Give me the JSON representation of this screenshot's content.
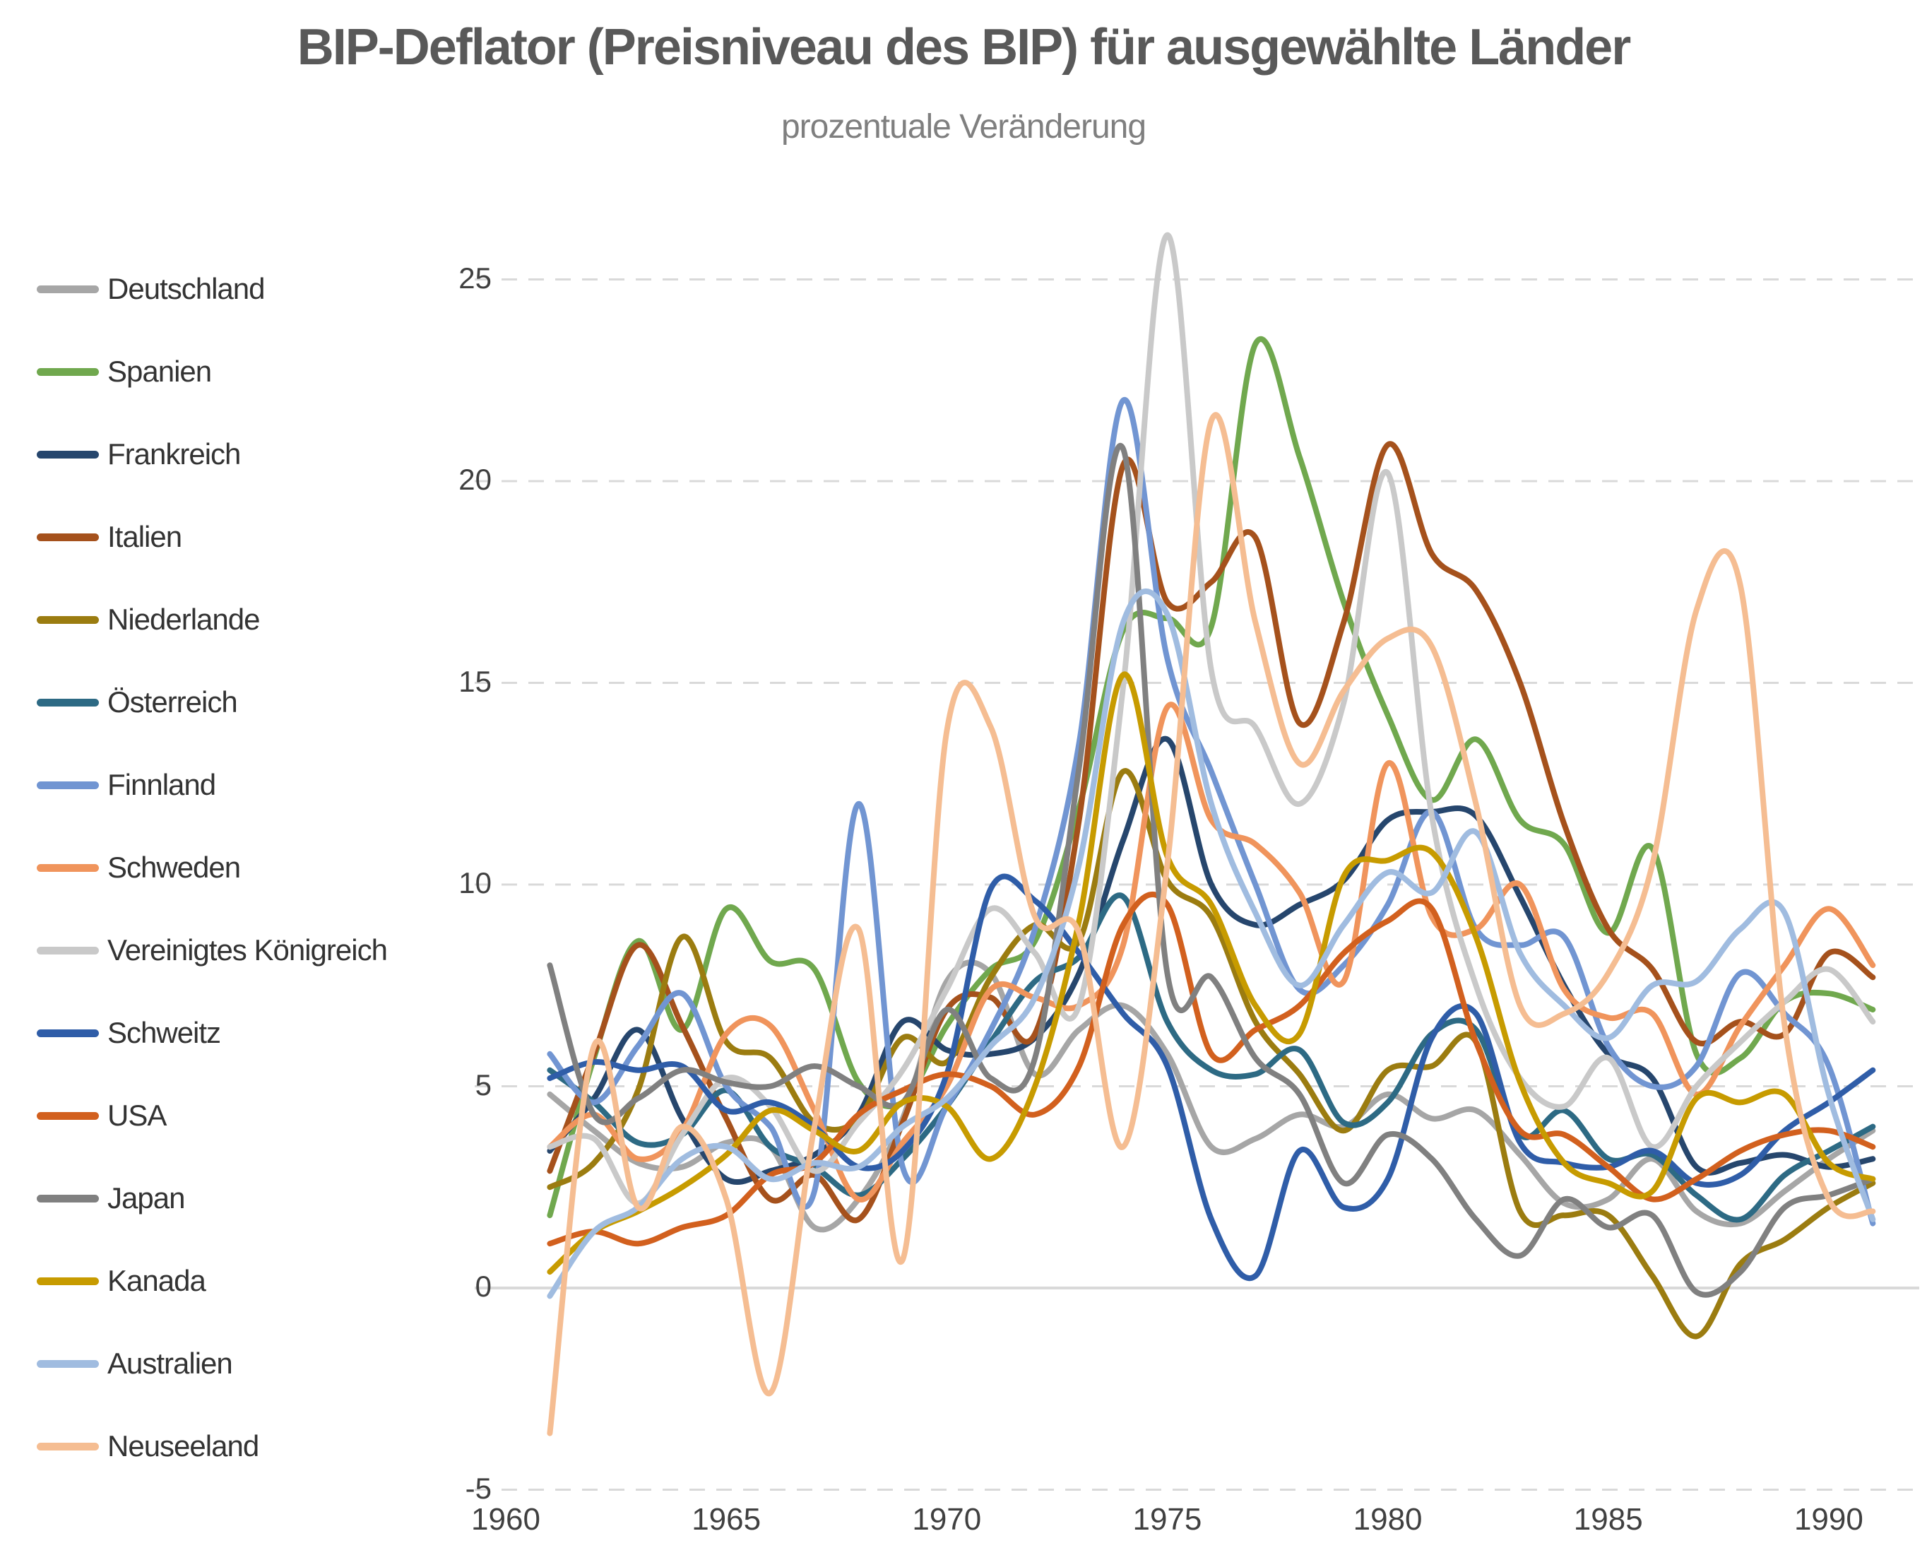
{
  "title": "BIP-Deflator (Preisniveau des BIP) für ausgewählte Länder",
  "subtitle": "prozentuale Veränderung",
  "chart_data": {
    "type": "line",
    "x_label": "",
    "y_label": "",
    "x": [
      1961,
      1962,
      1963,
      1964,
      1965,
      1966,
      1967,
      1968,
      1969,
      1970,
      1971,
      1972,
      1973,
      1974,
      1975,
      1976,
      1977,
      1978,
      1979,
      1980,
      1981,
      1982,
      1983,
      1984,
      1985,
      1986,
      1987,
      1988,
      1989,
      1990,
      1991
    ],
    "x_ticks": [
      1960,
      1965,
      1970,
      1975,
      1980,
      1985,
      1990
    ],
    "y_ticks": [
      25,
      20,
      15,
      10,
      5,
      0,
      -5
    ],
    "y_range": [
      -5,
      25
    ],
    "grid": "horizontal, dashed, zero line solid",
    "legend_position": "left",
    "grid_color": "#d9d9d9",
    "series": [
      {
        "name": "Deutschland",
        "color": "#a6a6a6",
        "values": [
          4.8,
          3.9,
          3.1,
          3.0,
          3.6,
          3.5,
          1.5,
          2.2,
          4.2,
          7.6,
          7.8,
          5.3,
          6.4,
          7.0,
          5.8,
          3.5,
          3.7,
          4.3,
          4.0,
          4.8,
          4.2,
          4.4,
          3.3,
          2.1,
          2.2,
          3.2,
          1.9,
          1.6,
          2.4,
          3.2,
          3.9
        ]
      },
      {
        "name": "Spanien",
        "color": "#70a84e",
        "values": [
          1.8,
          5.7,
          8.6,
          6.4,
          9.4,
          8.1,
          7.9,
          5.1,
          4.6,
          6.5,
          7.9,
          8.6,
          11.9,
          16.3,
          16.6,
          16.4,
          23.4,
          20.6,
          17.0,
          14.2,
          12.1,
          13.6,
          11.6,
          11.0,
          8.8,
          10.9,
          5.8,
          5.7,
          7.1,
          7.3,
          6.9
        ]
      },
      {
        "name": "Frankreich",
        "color": "#26466d",
        "values": [
          3.4,
          4.7,
          6.4,
          4.2,
          2.7,
          2.9,
          3.3,
          4.3,
          6.6,
          5.9,
          5.8,
          6.2,
          7.8,
          11.1,
          13.6,
          10.0,
          9.0,
          9.5,
          10.1,
          11.6,
          11.8,
          11.7,
          9.7,
          7.5,
          5.8,
          5.2,
          3.0,
          3.1,
          3.3,
          3.0,
          3.2
        ]
      },
      {
        "name": "Italien",
        "color": "#a5511c",
        "values": [
          2.9,
          5.8,
          8.5,
          6.5,
          4.2,
          2.2,
          2.8,
          1.7,
          4.1,
          6.9,
          7.2,
          6.3,
          11.6,
          20.4,
          17.0,
          17.5,
          18.6,
          14.0,
          16.5,
          20.9,
          18.2,
          17.3,
          15.0,
          11.5,
          8.9,
          7.9,
          6.1,
          6.6,
          6.3,
          8.3,
          7.7
        ]
      },
      {
        "name": "Niederlande",
        "color": "#9b7c10",
        "values": [
          2.5,
          3.1,
          4.9,
          8.7,
          6.1,
          5.7,
          4.1,
          4.2,
          6.2,
          5.6,
          7.7,
          9.0,
          8.6,
          12.8,
          10.1,
          9.2,
          6.6,
          5.3,
          3.9,
          5.4,
          5.5,
          6.1,
          1.9,
          1.8,
          1.8,
          0.3,
          -1.2,
          0.6,
          1.2,
          2.0,
          2.6
        ]
      },
      {
        "name": "Österreich",
        "color": "#2d6a84",
        "values": [
          5.4,
          4.6,
          3.6,
          3.8,
          4.9,
          3.5,
          3.0,
          2.3,
          3.2,
          4.5,
          6.1,
          7.6,
          8.2,
          9.7,
          6.6,
          5.4,
          5.3,
          5.9,
          4.1,
          4.6,
          6.3,
          6.4,
          3.8,
          4.4,
          3.2,
          3.3,
          2.3,
          1.7,
          2.8,
          3.4,
          4.0
        ]
      },
      {
        "name": "Finnland",
        "color": "#7195d2",
        "values": [
          5.8,
          4.6,
          6.0,
          7.3,
          5.0,
          4.0,
          2.4,
          12.0,
          3.0,
          4.5,
          6.4,
          8.9,
          13.5,
          22.0,
          15.6,
          12.8,
          10.0,
          7.4,
          8.0,
          9.5,
          11.8,
          8.9,
          8.5,
          8.7,
          6.0,
          5.0,
          5.5,
          7.8,
          6.8,
          5.5,
          1.6
        ]
      },
      {
        "name": "Schweden",
        "color": "#f0945c",
        "values": [
          3.5,
          4.3,
          3.2,
          3.9,
          6.3,
          6.5,
          4.4,
          2.2,
          3.6,
          5.0,
          7.4,
          7.2,
          7.0,
          8.5,
          14.4,
          11.6,
          11.0,
          9.8,
          7.6,
          13.0,
          9.2,
          8.9,
          10.0,
          7.4,
          6.7,
          6.8,
          4.8,
          6.5,
          8.0,
          9.4,
          8.0
        ]
      },
      {
        "name": "Vereinigtes Königreich",
        "color": "#c9c9c9",
        "values": [
          3.5,
          3.7,
          2.1,
          3.8,
          5.2,
          4.5,
          2.9,
          4.1,
          5.4,
          7.4,
          9.4,
          8.3,
          7.0,
          14.9,
          26.1,
          15.3,
          13.9,
          12.0,
          14.5,
          20.2,
          11.7,
          7.5,
          5.2,
          4.5,
          5.7,
          3.5,
          5.0,
          6.1,
          7.1,
          7.9,
          6.6
        ]
      },
      {
        "name": "Schweitz",
        "color": "#2f5da8",
        "values": [
          5.2,
          5.6,
          5.4,
          5.5,
          4.4,
          4.6,
          4.0,
          3.0,
          3.4,
          5.3,
          9.9,
          9.6,
          8.3,
          6.8,
          5.5,
          1.7,
          0.3,
          3.4,
          2.0,
          2.7,
          6.2,
          6.8,
          3.6,
          3.1,
          3.0,
          3.4,
          2.6,
          2.8,
          3.9,
          4.6,
          5.4
        ]
      },
      {
        "name": "USA",
        "color": "#d2601e",
        "values": [
          1.1,
          1.4,
          1.1,
          1.5,
          1.8,
          2.8,
          3.1,
          4.3,
          4.9,
          5.3,
          5.0,
          4.3,
          5.5,
          9.0,
          9.5,
          5.8,
          6.4,
          7.0,
          8.3,
          9.1,
          9.4,
          6.1,
          3.9,
          3.8,
          3.0,
          2.2,
          2.7,
          3.4,
          3.8,
          3.9,
          3.5
        ]
      },
      {
        "name": "Japan",
        "color": "#808080",
        "values": [
          8.0,
          4.3,
          4.7,
          5.4,
          5.1,
          5.0,
          5.5,
          5.0,
          4.6,
          6.9,
          5.2,
          5.7,
          12.9,
          20.8,
          7.8,
          7.7,
          5.7,
          4.8,
          2.6,
          3.8,
          3.2,
          1.7,
          0.8,
          2.2,
          1.5,
          1.8,
          -0.1,
          0.4,
          2.0,
          2.3,
          2.7
        ]
      },
      {
        "name": "Kanada",
        "color": "#c79b00",
        "values": [
          0.4,
          1.4,
          1.9,
          2.5,
          3.3,
          4.4,
          3.9,
          3.4,
          4.6,
          4.5,
          3.2,
          5.0,
          9.1,
          15.2,
          10.7,
          9.5,
          7.0,
          6.3,
          10.2,
          10.6,
          10.8,
          8.7,
          5.1,
          3.1,
          2.6,
          2.4,
          4.7,
          4.6,
          4.8,
          3.1,
          2.7
        ]
      },
      {
        "name": "Australien",
        "color": "#a0bce0",
        "values": [
          -0.2,
          1.4,
          2.0,
          3.2,
          3.5,
          2.7,
          3.1,
          3.0,
          4.0,
          4.7,
          6.0,
          7.2,
          10.5,
          16.5,
          16.7,
          12.0,
          9.3,
          7.5,
          9.0,
          10.3,
          9.8,
          11.3,
          8.3,
          7.0,
          6.2,
          7.5,
          7.6,
          8.9,
          9.3,
          4.8,
          1.7
        ]
      },
      {
        "name": "Neuseeland",
        "color": "#f5bd92",
        "values": [
          -3.6,
          6.0,
          2.0,
          4.0,
          2.2,
          -2.6,
          4.0,
          8.9,
          0.7,
          13.8,
          13.9,
          9.2,
          8.8,
          3.5,
          10.5,
          21.5,
          16.5,
          13.0,
          14.8,
          16.1,
          15.9,
          12.0,
          7.0,
          6.8,
          7.8,
          10.5,
          16.8,
          17.4,
          6.5,
          2.2,
          1.9
        ]
      }
    ]
  }
}
